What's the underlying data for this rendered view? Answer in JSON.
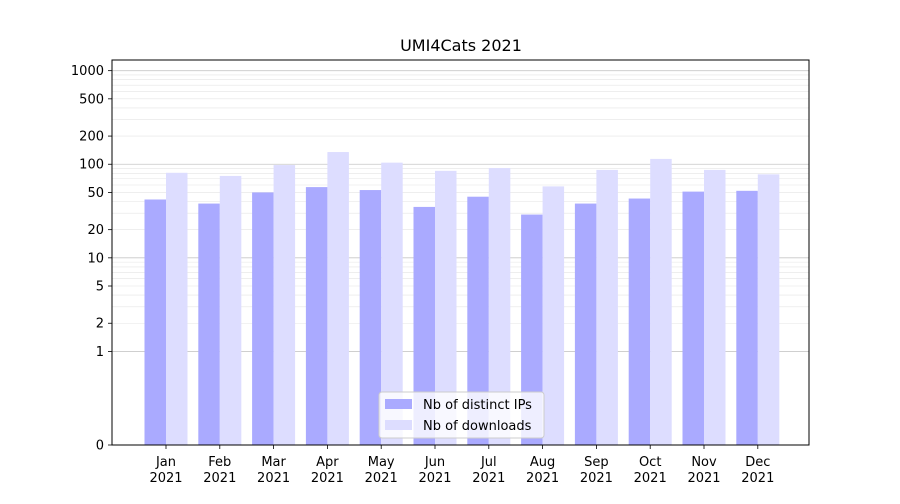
{
  "chart_data": {
    "type": "bar",
    "title": "UMI4Cats 2021",
    "xlabel": "",
    "ylabel": "",
    "y_scale": "symlog",
    "ylim": [
      0,
      1300
    ],
    "y_ticks": [
      0,
      1,
      2,
      5,
      10,
      20,
      50,
      100,
      200,
      500,
      1000
    ],
    "y_tick_labels": [
      "0",
      "1",
      "2",
      "5",
      "10",
      "20",
      "50",
      "100",
      "200",
      "500",
      "1000"
    ],
    "categories": [
      "Jan\n2021",
      "Feb\n2021",
      "Mar\n2021",
      "Apr\n2021",
      "May\n2021",
      "Jun\n2021",
      "Jul\n2021",
      "Aug\n2021",
      "Sep\n2021",
      "Oct\n2021",
      "Nov\n2021",
      "Dec\n2021"
    ],
    "series": [
      {
        "name": "Nb of distinct IPs",
        "color": "#aaaaff",
        "values": [
          42,
          38,
          50,
          57,
          53,
          35,
          45,
          29,
          38,
          43,
          51,
          52
        ]
      },
      {
        "name": "Nb of downloads",
        "color": "#ddddff",
        "values": [
          81,
          75,
          98,
          135,
          104,
          85,
          91,
          58,
          87,
          114,
          87,
          78
        ]
      }
    ],
    "legend": "bottom-center",
    "grid": "y"
  }
}
